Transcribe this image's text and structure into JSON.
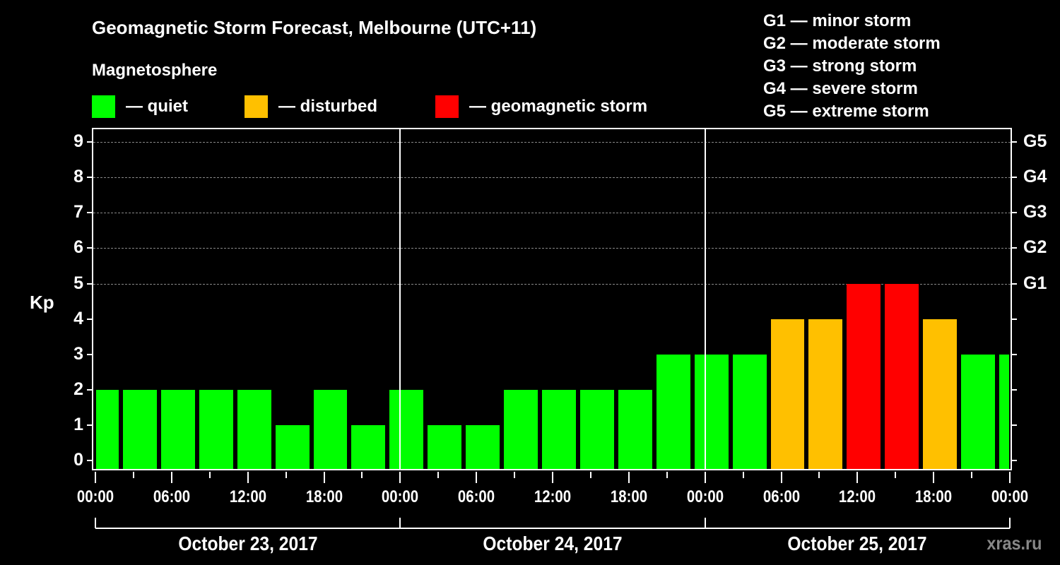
{
  "header": {
    "title": "Geomagnetic Storm Forecast, Melbourne (UTC+11)",
    "subtitle": "Magnetosphere"
  },
  "legend": {
    "items": [
      {
        "label": "— quiet",
        "color": "#00ff00"
      },
      {
        "label": "— disturbed",
        "color": "#ffc000"
      },
      {
        "label": "— geomagnetic storm",
        "color": "#ff0000"
      }
    ]
  },
  "g_scale": {
    "items": [
      "G1 — minor storm",
      "G2 — moderate storm",
      "G3 — strong storm",
      "G4 — severe storm",
      "G5 — extreme storm"
    ]
  },
  "axes": {
    "ylabel": "Kp",
    "yticks": [
      "0",
      "1",
      "2",
      "3",
      "4",
      "5",
      "6",
      "7",
      "8",
      "9"
    ],
    "right_ticks": [
      {
        "kp": 5,
        "label": "G1"
      },
      {
        "kp": 6,
        "label": "G2"
      },
      {
        "kp": 7,
        "label": "G3"
      },
      {
        "kp": 8,
        "label": "G4"
      },
      {
        "kp": 9,
        "label": "G5"
      }
    ],
    "xticks": [
      "00:00",
      "06:00",
      "12:00",
      "18:00",
      "00:00",
      "06:00",
      "12:00",
      "18:00",
      "00:00",
      "06:00",
      "12:00",
      "18:00",
      "00:00"
    ],
    "days": [
      "October 23, 2017",
      "October 24, 2017",
      "October 25, 2017"
    ]
  },
  "watermark": "xras.ru",
  "chart_data": {
    "type": "bar",
    "title": "Geomagnetic Storm Forecast, Melbourne (UTC+11)",
    "xlabel": "",
    "ylabel": "Kp",
    "ylim": [
      0,
      9
    ],
    "grid": "dashed horizontal at Kp 5-9",
    "legend": [
      "quiet (green)",
      "disturbed (orange)",
      "geomagnetic storm (red)"
    ],
    "right_axis": {
      "5": "G1",
      "6": "G2",
      "7": "G3",
      "8": "G4",
      "9": "G5"
    },
    "categories": [
      "Oct 23 00:00-02:00",
      "Oct 23 02:00",
      "Oct 23 05:00",
      "Oct 23 08:00",
      "Oct 23 11:00",
      "Oct 23 14:00",
      "Oct 23 17:00",
      "Oct 23 20:00",
      "Oct 23 23:00",
      "Oct 24 02:00",
      "Oct 24 05:00",
      "Oct 24 08:00",
      "Oct 24 11:00",
      "Oct 24 14:00",
      "Oct 24 17:00",
      "Oct 24 20:00",
      "Oct 24 23:00",
      "Oct 25 02:00",
      "Oct 25 05:00",
      "Oct 25 08:00",
      "Oct 25 11:00",
      "Oct 25 14:00",
      "Oct 25 17:00",
      "Oct 25 20:00",
      "Oct 25 23:00"
    ],
    "values": [
      2,
      2,
      2,
      2,
      2,
      1,
      2,
      1,
      2,
      1,
      1,
      2,
      2,
      2,
      2,
      3,
      3,
      3,
      4,
      4,
      5,
      5,
      4,
      3,
      3
    ],
    "status": [
      "quiet",
      "quiet",
      "quiet",
      "quiet",
      "quiet",
      "quiet",
      "quiet",
      "quiet",
      "quiet",
      "quiet",
      "quiet",
      "quiet",
      "quiet",
      "quiet",
      "quiet",
      "quiet",
      "quiet",
      "quiet",
      "disturbed",
      "disturbed",
      "storm",
      "storm",
      "disturbed",
      "quiet",
      "quiet"
    ],
    "colors": {
      "quiet": "#00ff00",
      "disturbed": "#ffc000",
      "storm": "#ff0000"
    }
  }
}
